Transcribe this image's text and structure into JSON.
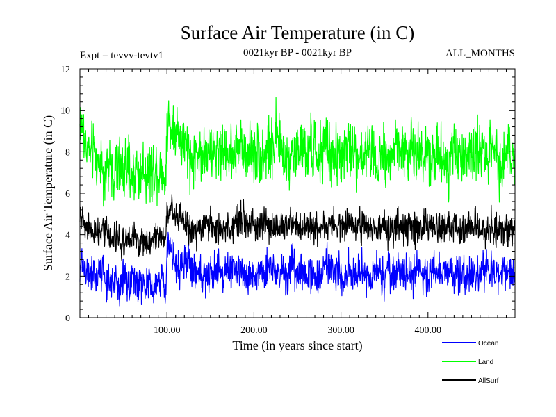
{
  "chart_data": {
    "type": "line",
    "title": "Surface Air Temperature (in C)",
    "experiment_label": "Expt = tevvv-tevtv1",
    "period_label": "0021kyr BP - 0021kyr BP",
    "months_label": "ALL_MONTHS",
    "xlabel": "Time (in years since start)",
    "ylabel": "Surface Air Temperature (in C)",
    "xlim": [
      0,
      500
    ],
    "ylim": [
      0,
      12
    ],
    "x_ticks": [
      {
        "value": 100,
        "label": "100.00"
      },
      {
        "value": 200,
        "label": "200.00"
      },
      {
        "value": 300,
        "label": "300.00"
      },
      {
        "value": 400,
        "label": "400.00"
      }
    ],
    "y_ticks": [
      {
        "value": 0,
        "label": "0"
      },
      {
        "value": 2,
        "label": "2"
      },
      {
        "value": 4,
        "label": "4"
      },
      {
        "value": 6,
        "label": "6"
      },
      {
        "value": 8,
        "label": "8"
      },
      {
        "value": 10,
        "label": "10"
      },
      {
        "value": 12,
        "label": "12"
      }
    ],
    "legend_position": "bottom-right, below plot",
    "series": [
      {
        "name": "Ocean",
        "color": "#0000ff",
        "mean_profile": [
          [
            0,
            2.6
          ],
          [
            15,
            2.0
          ],
          [
            50,
            1.7
          ],
          [
            99,
            1.7
          ],
          [
            100,
            3.4
          ],
          [
            130,
            2.4
          ],
          [
            200,
            2.2
          ],
          [
            500,
            2.1
          ]
        ],
        "spread": 0.55
      },
      {
        "name": "Land",
        "color": "#00ff00",
        "mean_profile": [
          [
            0,
            9.5
          ],
          [
            15,
            7.5
          ],
          [
            50,
            7.0
          ],
          [
            99,
            7.2
          ],
          [
            100,
            9.5
          ],
          [
            130,
            8.0
          ],
          [
            200,
            8.0
          ],
          [
            500,
            7.9
          ]
        ],
        "spread": 0.85
      },
      {
        "name": "AllSurf",
        "color": "#000000",
        "mean_profile": [
          [
            0,
            5.0
          ],
          [
            15,
            4.1
          ],
          [
            50,
            3.8
          ],
          [
            99,
            3.9
          ],
          [
            100,
            5.2
          ],
          [
            130,
            4.5
          ],
          [
            200,
            4.4
          ],
          [
            500,
            4.3
          ]
        ],
        "spread": 0.45
      }
    ],
    "draw_order": [
      "Land",
      "AllSurf",
      "Ocean"
    ]
  }
}
